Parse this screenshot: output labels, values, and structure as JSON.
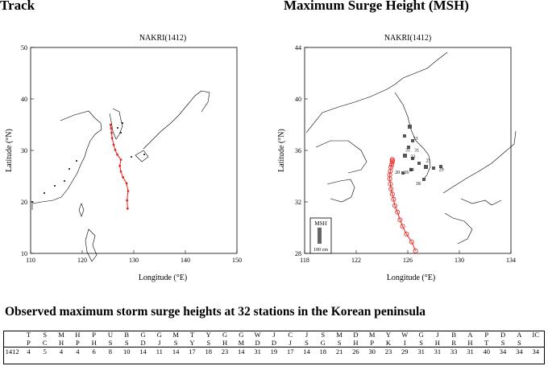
{
  "headings": {
    "left": "Track",
    "right": "Maximum Surge Height (MSH)",
    "table_caption": "Observed maximum storm surge heights at 32 stations in the Korean peninsula"
  },
  "chart_data": [
    {
      "type": "line",
      "title": "NAKRI(1412)",
      "xlabel": "Longitude (°E)",
      "ylabel": "Latitude (°N)",
      "xlim": [
        110,
        150
      ],
      "ylim": [
        10,
        50
      ],
      "xticks": [
        110,
        120,
        130,
        140,
        150
      ],
      "yticks": [
        10,
        20,
        30,
        40,
        50
      ],
      "series": [
        {
          "color": "#e8231f",
          "x": [
            128.8,
            128.7,
            128.9,
            128.6,
            127.9,
            127.5,
            127.3,
            127.5,
            126.8,
            126.4,
            126.1,
            125.8,
            125.7,
            125.6,
            125.5
          ],
          "y": [
            18.7,
            20.3,
            22.1,
            23.6,
            24.8,
            25.9,
            27.0,
            28.2,
            29.2,
            30.1,
            31.1,
            32.4,
            33.4,
            34.3,
            35.0
          ]
        }
      ],
      "grid": false
    },
    {
      "type": "scatter",
      "title": "NAKRI(1412)",
      "xlabel": "Longitude (°E)",
      "ylabel": "Latitude (°N)",
      "xlim": [
        118,
        134
      ],
      "ylim": [
        28,
        44
      ],
      "xticks": [
        118,
        122,
        126,
        130,
        134
      ],
      "yticks": [
        28,
        32,
        36,
        40,
        44
      ],
      "series": [
        {
          "color": "#e8231f",
          "x": [
            126.6,
            126.3,
            125.9,
            125.6,
            125.4,
            125.2,
            125.0,
            124.9,
            124.8,
            124.7,
            124.65,
            124.6,
            124.6,
            124.65,
            124.7,
            124.75,
            124.8,
            124.8,
            124.8
          ],
          "y": [
            28.2,
            28.9,
            29.5,
            30.1,
            30.6,
            31.2,
            31.7,
            32.2,
            32.6,
            33.0,
            33.4,
            33.8,
            34.1,
            34.4,
            34.7,
            34.9,
            35.1,
            35.2,
            35.3
          ]
        }
      ],
      "msh_labels": [
        {
          "text": "33",
          "lon": 126.6,
          "lat": 36.8
        },
        {
          "text": "31",
          "lon": 126.0,
          "lat": 35.9
        },
        {
          "text": "31",
          "lon": 126.7,
          "lat": 35.9
        },
        {
          "text": "23",
          "lon": 126.4,
          "lat": 35.4
        },
        {
          "text": "21",
          "lon": 127.6,
          "lat": 35.1
        },
        {
          "text": "20",
          "lon": 125.2,
          "lat": 34.2
        },
        {
          "text": "26",
          "lon": 125.9,
          "lat": 34.2
        },
        {
          "text": "34",
          "lon": 126.3,
          "lat": 34.4
        },
        {
          "text": "29",
          "lon": 128.6,
          "lat": 34.4
        },
        {
          "text": "18",
          "lon": 126.8,
          "lat": 33.3
        }
      ],
      "legend": {
        "label": "MSH",
        "scale": "100 cm"
      },
      "grid": false
    }
  ],
  "table": {
    "header": [
      [
        "T",
        "P"
      ],
      [
        "S",
        "C"
      ],
      [
        "M",
        "H"
      ],
      [
        "H",
        "P"
      ],
      [
        "P",
        "H"
      ],
      [
        "U",
        "S"
      ],
      [
        "B",
        "S"
      ],
      [
        "G",
        "D"
      ],
      [
        "G",
        "J"
      ],
      [
        "M",
        "S"
      ],
      [
        "T",
        "Y"
      ],
      [
        "Y",
        "S"
      ],
      [
        "G",
        "H"
      ],
      [
        "G",
        "M"
      ],
      [
        "W",
        "D"
      ],
      [
        "J",
        "D"
      ],
      [
        "C",
        "J"
      ],
      [
        "J",
        "S"
      ],
      [
        "S",
        "G"
      ],
      [
        "M",
        "S"
      ],
      [
        "D",
        "H"
      ],
      [
        "M",
        "P"
      ],
      [
        "Y",
        "K"
      ],
      [
        "W",
        "I"
      ],
      [
        "G",
        "S"
      ],
      [
        "J",
        "H"
      ],
      [
        "B",
        "R"
      ],
      [
        "A",
        "H"
      ],
      [
        "P",
        "T"
      ],
      [
        "D",
        "S"
      ],
      [
        "A",
        "S"
      ],
      [
        "IC"
      ]
    ],
    "values": [
      "1412",
      "4",
      "5",
      "4",
      "4",
      "6",
      "8",
      "10",
      "14",
      "11",
      "14",
      "17",
      "18",
      "23",
      "14",
      "31",
      "19",
      "17",
      "14",
      "18",
      "21",
      "26",
      "30",
      "23",
      "29",
      "31",
      "31",
      "33",
      "31",
      "40",
      "34",
      "34",
      "34"
    ]
  }
}
